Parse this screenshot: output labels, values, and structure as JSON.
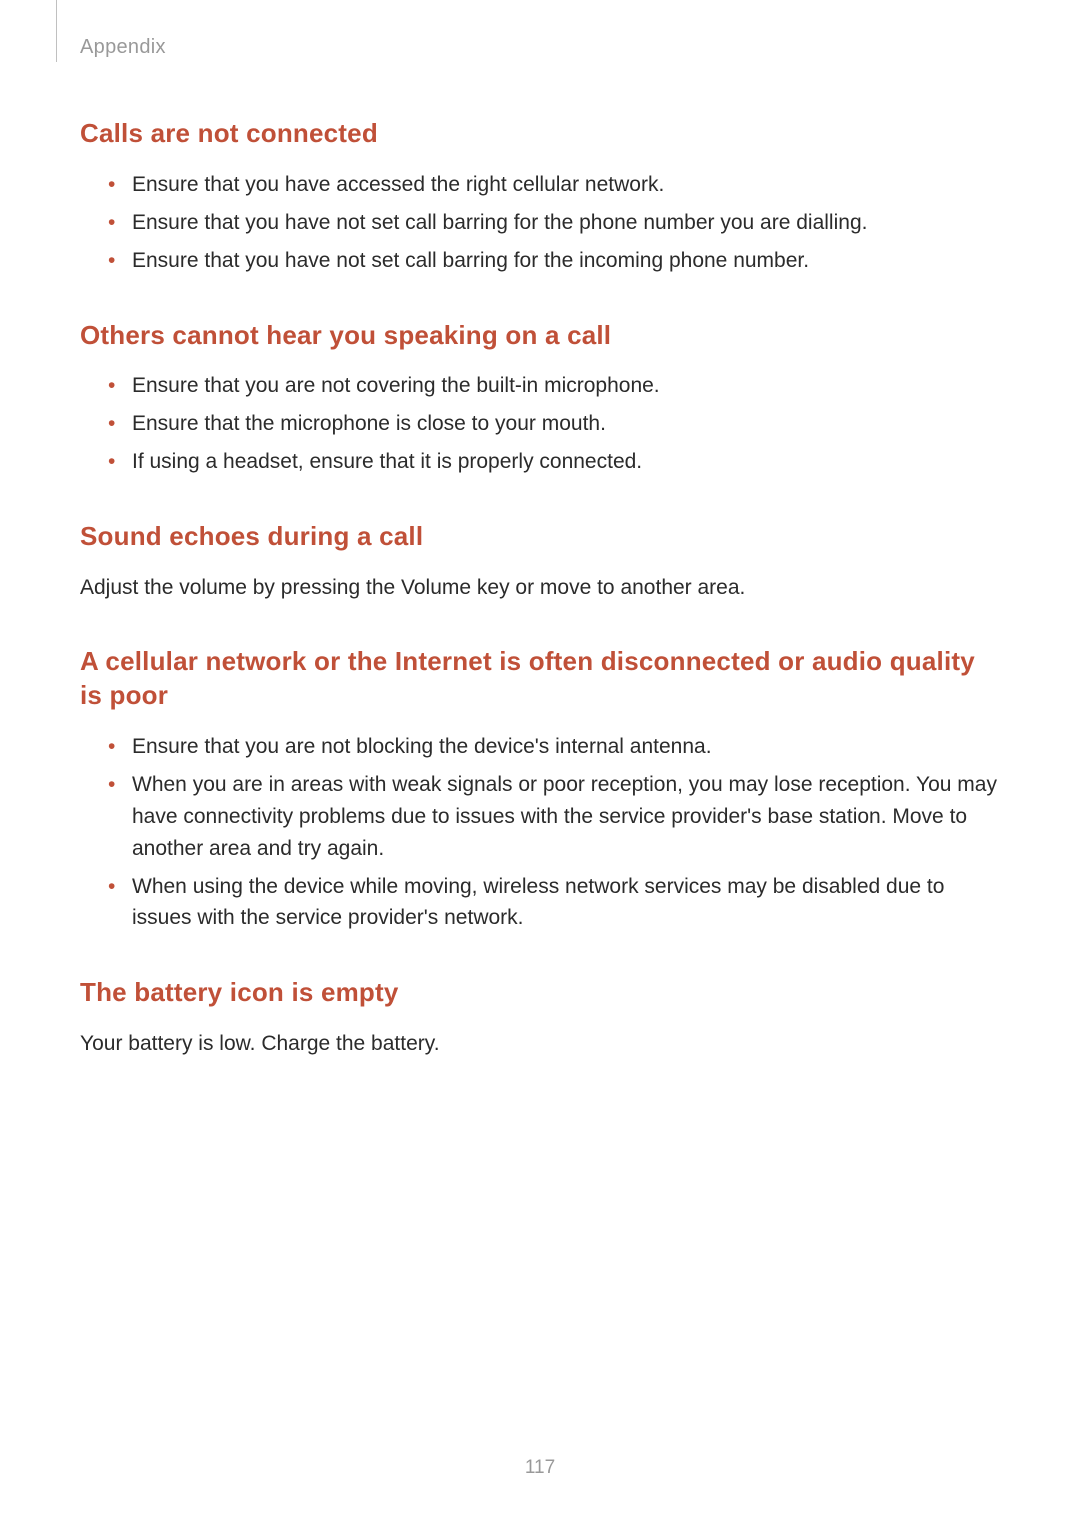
{
  "header": {
    "section_label": "Appendix"
  },
  "sections": {
    "calls_not_connected": {
      "title": "Calls are not connected",
      "bullets": [
        "Ensure that you have accessed the right cellular network.",
        "Ensure that you have not set call barring for the phone number you are dialling.",
        "Ensure that you have not set call barring for the incoming phone number."
      ]
    },
    "others_cannot_hear": {
      "title": "Others cannot hear you speaking on a call",
      "bullets": [
        "Ensure that you are not covering the built-in microphone.",
        "Ensure that the microphone is close to your mouth.",
        "If using a headset, ensure that it is properly connected."
      ]
    },
    "sound_echoes": {
      "title": "Sound echoes during a call",
      "body": "Adjust the volume by pressing the Volume key or move to another area."
    },
    "cellular_network": {
      "title": "A cellular network or the Internet is often disconnected or audio quality is poor",
      "bullets": [
        "Ensure that you are not blocking the device's internal antenna.",
        "When you are in areas with weak signals or poor reception, you may lose reception. You may have connectivity problems due to issues with the service provider's base station. Move to another area and try again.",
        "When using the device while moving, wireless network services may be disabled due to issues with the service provider's network."
      ]
    },
    "battery_empty": {
      "title": "The battery icon is empty",
      "body": "Your battery is low. Charge the battery."
    }
  },
  "page_number": "117",
  "colors": {
    "heading": "#c05038",
    "body_text": "#2b2b2b",
    "header_text": "#999999",
    "bullet": "#c05038",
    "background": "#ffffff"
  },
  "typography": {
    "heading_fontsize": 26,
    "body_fontsize": 21,
    "header_fontsize": 20,
    "page_number_fontsize": 19
  }
}
